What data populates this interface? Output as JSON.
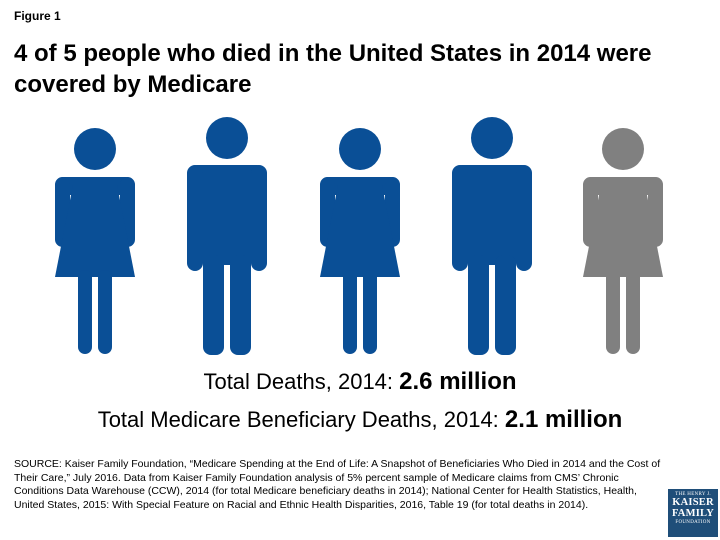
{
  "figure_label": "Figure 1",
  "title": "4 of 5 people who died in the United States in 2014 were covered by Medicare",
  "chart_data": {
    "type": "pictograph",
    "figures": [
      {
        "shape": "female",
        "covered": true
      },
      {
        "shape": "male",
        "covered": true
      },
      {
        "shape": "female",
        "covered": true
      },
      {
        "shape": "male",
        "covered": true
      },
      {
        "shape": "female",
        "covered": false
      }
    ],
    "covered_count": 4,
    "total_count": 5,
    "colors": {
      "covered": "#0a4f96",
      "not_covered": "#808080"
    }
  },
  "stats": {
    "total_label": "Total Deaths, 2014:",
    "total_value": "2.6 million",
    "medicare_label": "Total Medicare Beneficiary Deaths, 2014:",
    "medicare_value": "2.1 million"
  },
  "source": "SOURCE: Kaiser Family Foundation, “Medicare Spending at the End of Life: A Snapshot of Beneficiaries Who Died in 2014 and the Cost of Their Care,” July 2016. Data from Kaiser Family Foundation analysis of 5% percent sample of Medicare claims from CMS’ Chronic Conditions Data Warehouse (CCW), 2014 (for total Medicare beneficiary deaths in 2014); National Center for Health Statistics, Health, United States, 2015: With Special Feature on Racial and Ethnic Health Disparities, 2016, Table 19 (for total deaths in 2014).",
  "logo": {
    "line1": "THE HENRY J.",
    "line2a": "KAISER",
    "line2b": "FAMILY",
    "line3": "FOUNDATION"
  }
}
